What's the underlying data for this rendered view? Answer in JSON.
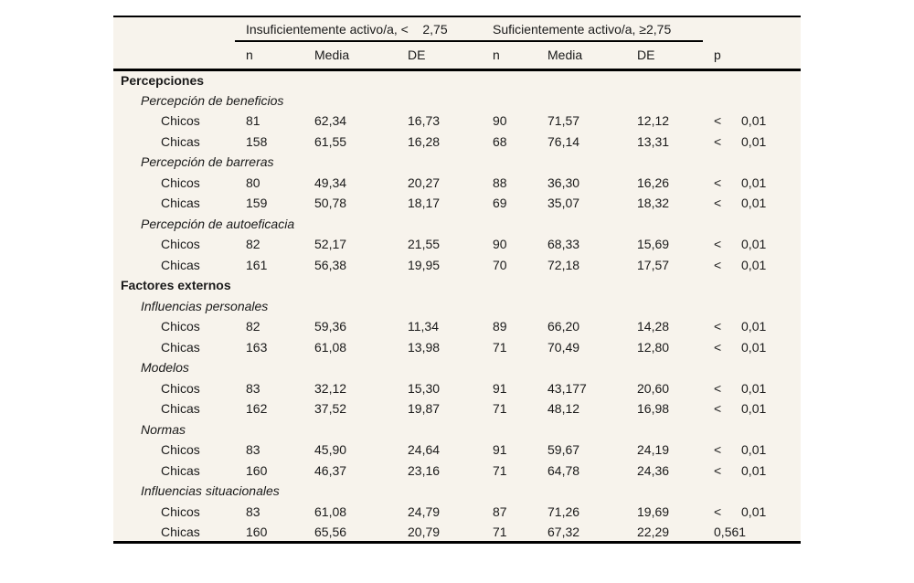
{
  "table": {
    "group_headers": [
      "Insuficientemente activo/a, <    2,75",
      "Suficientemente activo/a, ≥2,75"
    ],
    "sub_headers": [
      "n",
      "Media",
      "DE",
      "n",
      "Media",
      "DE",
      "p"
    ],
    "rows": [
      {
        "type": "section",
        "label": "Percepciones"
      },
      {
        "type": "subsection",
        "label": "Percepción de beneficios"
      },
      {
        "type": "data",
        "label": "Chicos",
        "cells": [
          "81",
          "62,34",
          "16,73",
          "90",
          "71,57",
          "12,12",
          "<",
          "0,01"
        ]
      },
      {
        "type": "data",
        "label": "Chicas",
        "cells": [
          "158",
          "61,55",
          "16,28",
          "68",
          "76,14",
          "13,31",
          "<",
          "0,01"
        ]
      },
      {
        "type": "subsection",
        "label": "Percepción de barreras"
      },
      {
        "type": "data",
        "label": "Chicos",
        "cells": [
          "80",
          "49,34",
          "20,27",
          "88",
          "36,30",
          "16,26",
          "<",
          "0,01"
        ]
      },
      {
        "type": "data",
        "label": "Chicas",
        "cells": [
          "159",
          "50,78",
          "18,17",
          "69",
          "35,07",
          "18,32",
          "<",
          "0,01"
        ]
      },
      {
        "type": "subsection",
        "label": "Percepción de autoeficacia"
      },
      {
        "type": "data",
        "label": "Chicos",
        "cells": [
          "82",
          "52,17",
          "21,55",
          "90",
          "68,33",
          "15,69",
          "<",
          "0,01"
        ]
      },
      {
        "type": "data",
        "label": "Chicas",
        "cells": [
          "161",
          "56,38",
          "19,95",
          "70",
          "72,18",
          "17,57",
          "<",
          "0,01"
        ]
      },
      {
        "type": "section",
        "label": "Factores externos"
      },
      {
        "type": "subsection",
        "label": "Influencias personales"
      },
      {
        "type": "data",
        "label": "Chicos",
        "cells": [
          "82",
          "59,36",
          "11,34",
          "89",
          "66,20",
          "14,28",
          "<",
          "0,01"
        ]
      },
      {
        "type": "data",
        "label": "Chicas",
        "cells": [
          "163",
          "61,08",
          "13,98",
          "71",
          "70,49",
          "12,80",
          "<",
          "0,01"
        ]
      },
      {
        "type": "subsection",
        "label": "Modelos"
      },
      {
        "type": "data",
        "label": "Chicos",
        "cells": [
          "83",
          "32,12",
          "15,30",
          "91",
          "43,177",
          "20,60",
          "<",
          "0,01"
        ]
      },
      {
        "type": "data",
        "label": "Chicas",
        "cells": [
          "162",
          "37,52",
          "19,87",
          "71",
          "48,12",
          "16,98",
          "<",
          "0,01"
        ]
      },
      {
        "type": "subsection",
        "label": "Normas"
      },
      {
        "type": "data",
        "label": "Chicos",
        "cells": [
          "83",
          "45,90",
          "24,64",
          "91",
          "59,67",
          "24,19",
          "<",
          "0,01"
        ]
      },
      {
        "type": "data",
        "label": "Chicas",
        "cells": [
          "160",
          "46,37",
          "23,16",
          "71",
          "64,78",
          "24,36",
          "<",
          "0,01"
        ]
      },
      {
        "type": "subsection",
        "label": "Influencias situacionales"
      },
      {
        "type": "data",
        "label": "Chicos",
        "cells": [
          "83",
          "61,08",
          "24,79",
          "87",
          "71,26",
          "19,69",
          "<",
          "0,01"
        ]
      },
      {
        "type": "data",
        "label": "Chicas",
        "cells": [
          "160",
          "65,56",
          "20,79",
          "71",
          "67,32",
          "22,29",
          "0,561",
          ""
        ]
      }
    ]
  },
  "colors": {
    "table_background": "#f7f3ec",
    "text": "#1a1a1a",
    "rule": "#000000",
    "page_background": "#ffffff"
  }
}
